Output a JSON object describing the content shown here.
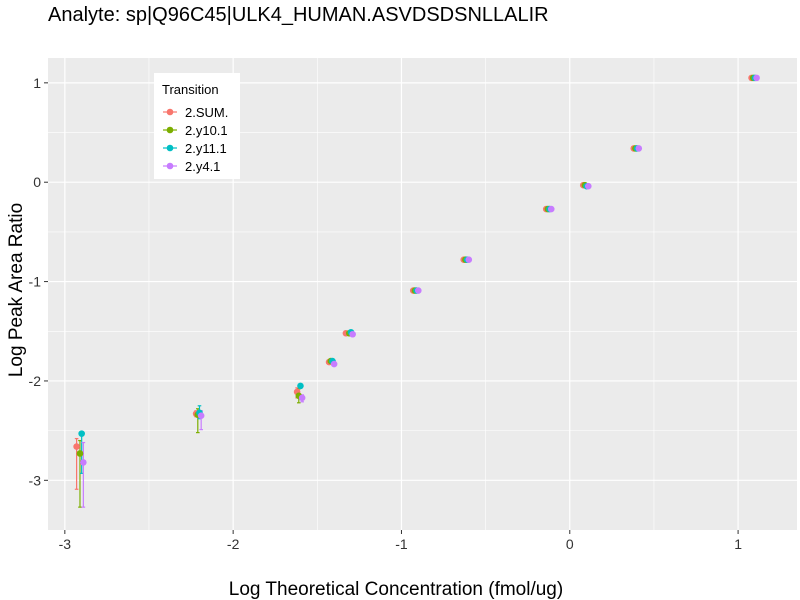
{
  "chart_data": {
    "type": "scatter",
    "title": "Analyte: sp|Q96C45|ULK4_HUMAN.ASVDSDSNLLALIR",
    "xlabel": "Log Theoretical Concentration (fmol/ug)",
    "ylabel": "Log Peak Area Ratio",
    "xlim": [
      -3.1,
      1.35
    ],
    "ylim": [
      -3.5,
      1.25
    ],
    "xticks": [
      -3,
      -2,
      -1,
      0,
      1
    ],
    "yticks": [
      -3,
      -2,
      -1,
      0,
      1
    ],
    "grid": true,
    "legend": {
      "title": "Transition",
      "position": "top-left"
    },
    "series": [
      {
        "name": "2.SUM.",
        "color": "#F8766D",
        "points": [
          {
            "x": -2.93,
            "y": -2.66,
            "ymin": -3.09,
            "ymax": -2.58
          },
          {
            "x": -2.22,
            "y": -2.33,
            "ymin": -2.36,
            "ymax": -2.3
          },
          {
            "x": -1.62,
            "y": -2.11,
            "ymin": -2.17,
            "ymax": -2.07
          },
          {
            "x": -1.43,
            "y": -1.81,
            "ymin": -1.83,
            "ymax": -1.79
          },
          {
            "x": -1.33,
            "y": -1.52,
            "ymin": -1.54,
            "ymax": -1.5
          },
          {
            "x": -0.93,
            "y": -1.09,
            "ymin": -1.1,
            "ymax": -1.08
          },
          {
            "x": -0.63,
            "y": -0.78,
            "ymin": -0.79,
            "ymax": -0.77
          },
          {
            "x": -0.14,
            "y": -0.27,
            "ymin": -0.28,
            "ymax": -0.26
          },
          {
            "x": 0.08,
            "y": -0.03,
            "ymin": -0.04,
            "ymax": -0.02
          },
          {
            "x": 0.38,
            "y": 0.34,
            "ymin": 0.33,
            "ymax": 0.35
          },
          {
            "x": 1.08,
            "y": 1.05,
            "ymin": 1.04,
            "ymax": 1.06
          }
        ]
      },
      {
        "name": "2.y10.1",
        "color": "#7CAE00",
        "points": [
          {
            "x": -2.91,
            "y": -2.73,
            "ymin": -3.27,
            "ymax": -2.6
          },
          {
            "x": -2.21,
            "y": -2.34,
            "ymin": -2.52,
            "ymax": -2.28
          },
          {
            "x": -1.61,
            "y": -2.15,
            "ymin": -2.22,
            "ymax": -2.08
          },
          {
            "x": -1.42,
            "y": -1.8,
            "ymin": -1.82,
            "ymax": -1.78
          },
          {
            "x": -1.31,
            "y": -1.52,
            "ymin": -1.54,
            "ymax": -1.5
          },
          {
            "x": -0.92,
            "y": -1.09,
            "ymin": -1.1,
            "ymax": -1.08
          },
          {
            "x": -0.62,
            "y": -0.78,
            "ymin": -0.79,
            "ymax": -0.77
          },
          {
            "x": -0.13,
            "y": -0.27,
            "ymin": -0.28,
            "ymax": -0.26
          },
          {
            "x": 0.09,
            "y": -0.03,
            "ymin": -0.04,
            "ymax": -0.02
          },
          {
            "x": 0.39,
            "y": 0.34,
            "ymin": 0.33,
            "ymax": 0.35
          },
          {
            "x": 1.09,
            "y": 1.05,
            "ymin": 1.04,
            "ymax": 1.06
          }
        ]
      },
      {
        "name": "2.y11.1",
        "color": "#00BFC4",
        "points": [
          {
            "x": -2.9,
            "y": -2.53,
            "ymin": -2.93,
            "ymax": -2.51
          },
          {
            "x": -2.2,
            "y": -2.32,
            "ymin": -2.38,
            "ymax": -2.25
          },
          {
            "x": -1.6,
            "y": -2.05,
            "ymin": -2.07,
            "ymax": -2.03
          },
          {
            "x": -1.41,
            "y": -1.8,
            "ymin": -1.82,
            "ymax": -1.78
          },
          {
            "x": -1.3,
            "y": -1.51,
            "ymin": -1.53,
            "ymax": -1.49
          },
          {
            "x": -0.91,
            "y": -1.09,
            "ymin": -1.1,
            "ymax": -1.08
          },
          {
            "x": -0.61,
            "y": -0.78,
            "ymin": -0.79,
            "ymax": -0.77
          },
          {
            "x": -0.12,
            "y": -0.27,
            "ymin": -0.28,
            "ymax": -0.26
          },
          {
            "x": 0.1,
            "y": -0.04,
            "ymin": -0.05,
            "ymax": -0.03
          },
          {
            "x": 0.4,
            "y": 0.34,
            "ymin": 0.33,
            "ymax": 0.35
          },
          {
            "x": 1.1,
            "y": 1.05,
            "ymin": 1.04,
            "ymax": 1.06
          }
        ]
      },
      {
        "name": "2.y4.1",
        "color": "#C77CFF",
        "points": [
          {
            "x": -2.89,
            "y": -2.82,
            "ymin": -3.27,
            "ymax": -2.62
          },
          {
            "x": -2.19,
            "y": -2.35,
            "ymin": -2.49,
            "ymax": -2.3
          },
          {
            "x": -1.59,
            "y": -2.17,
            "ymin": -2.21,
            "ymax": -2.14
          },
          {
            "x": -1.4,
            "y": -1.83,
            "ymin": -1.85,
            "ymax": -1.8
          },
          {
            "x": -1.29,
            "y": -1.53,
            "ymin": -1.55,
            "ymax": -1.51
          },
          {
            "x": -0.9,
            "y": -1.09,
            "ymin": -1.1,
            "ymax": -1.08
          },
          {
            "x": -0.6,
            "y": -0.78,
            "ymin": -0.79,
            "ymax": -0.77
          },
          {
            "x": -0.11,
            "y": -0.27,
            "ymin": -0.28,
            "ymax": -0.26
          },
          {
            "x": 0.11,
            "y": -0.04,
            "ymin": -0.05,
            "ymax": -0.03
          },
          {
            "x": 0.41,
            "y": 0.34,
            "ymin": 0.33,
            "ymax": 0.35
          },
          {
            "x": 1.11,
            "y": 1.05,
            "ymin": 1.04,
            "ymax": 1.06
          }
        ]
      }
    ]
  }
}
